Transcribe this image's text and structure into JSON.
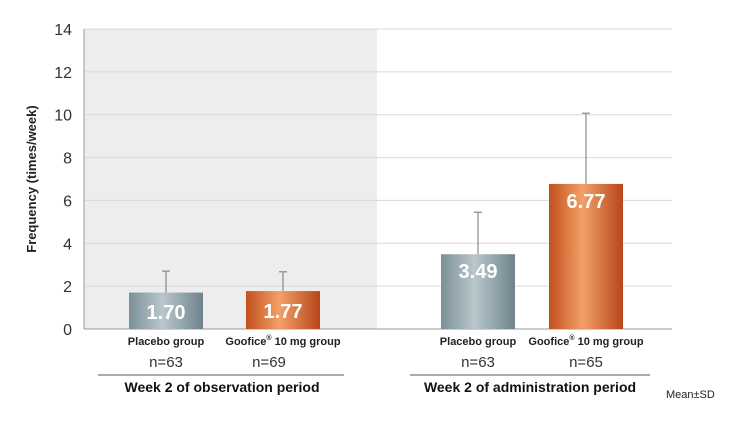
{
  "chart_data": {
    "type": "bar",
    "ylabel": "Frequency (times/week)",
    "ylim": [
      0,
      14
    ],
    "yticks": [
      0,
      2,
      4,
      6,
      8,
      10,
      12,
      14
    ],
    "grid": true,
    "bars": [
      {
        "label": "Placebo group",
        "period": "Week 2 of observation period",
        "value": 1.7,
        "value_label": "1.70",
        "sd": 1.0,
        "n": "n=63",
        "color": "#8c9ea6"
      },
      {
        "label_main": "Goofice",
        "label_sup": "®",
        "label_rest": " 10 mg group",
        "period": "Week 2 of observation period",
        "value": 1.77,
        "value_label": "1.77",
        "sd": 0.9,
        "n": "n=69",
        "color": "#d5622a"
      },
      {
        "label": "Placebo group",
        "period": "Week 2 of administration period",
        "value": 3.49,
        "value_label": "3.49",
        "sd": 1.96,
        "n": "n=63",
        "color": "#8c9ea6"
      },
      {
        "label_main": "Goofice",
        "label_sup": "®",
        "label_rest": " 10 mg group",
        "period": "Week 2 of administration period",
        "value": 6.77,
        "value_label": "6.77",
        "sd": 3.3,
        "n": "n=65",
        "color": "#d5622a"
      }
    ],
    "periods": [
      "Week 2 of observation period",
      "Week 2 of administration period"
    ],
    "footnote": "Mean±SD",
    "shaded_region": "Week 2 of observation period"
  },
  "colors": {
    "shade": "#ededed",
    "grid": "#d9d9d9",
    "axis": "#999999",
    "errorbar": "#888888"
  }
}
